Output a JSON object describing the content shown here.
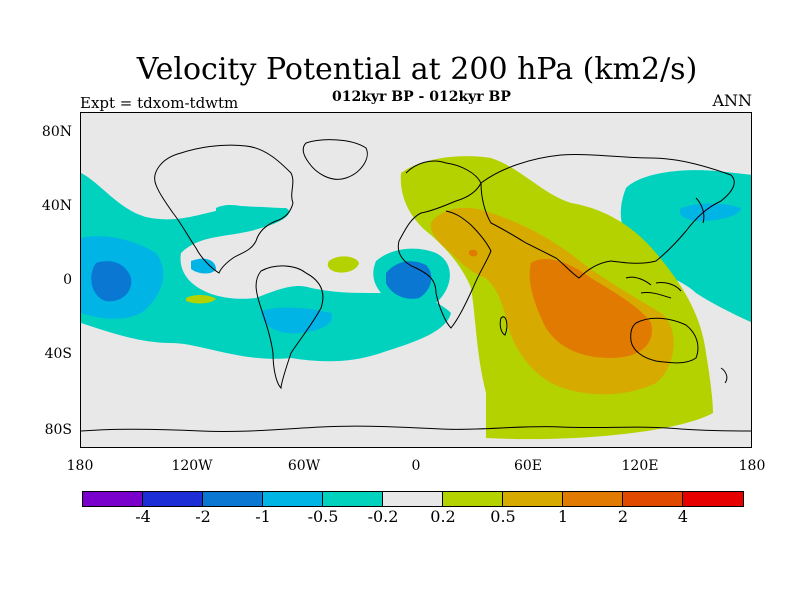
{
  "header": {
    "title": "Velocity Potential at 200 hPa (km2/s)",
    "subtitle": "012kyr BP - 012kyr BP",
    "experiment": "Expt = tdxom-tdwtm",
    "season": "ANN"
  },
  "map": {
    "projection": "cylindrical-equidistant",
    "lat_range": [
      -90,
      90
    ],
    "lon_range": [
      -180,
      180
    ],
    "y_tick_labels": [
      "80N",
      "40N",
      "0",
      "40S",
      "80S"
    ],
    "x_tick_labels": [
      "180",
      "120W",
      "60W",
      "0",
      "60E",
      "120E",
      "180"
    ],
    "field": "velocity potential anomaly",
    "colors": {
      "background": "#e8e8e8",
      "coast": "#000000"
    }
  },
  "colorbar": {
    "colors": [
      "#7a00cc",
      "#1e2ed6",
      "#0a78d2",
      "#00b4e6",
      "#00d2be",
      "#e8e8e8",
      "#b4d200",
      "#d7aa00",
      "#e07a00",
      "#e04a00",
      "#e60000"
    ],
    "labels": [
      "-4",
      "-2",
      "-1",
      "-0.5",
      "-0.2",
      "0.2",
      "0.5",
      "1",
      "2",
      "4"
    ]
  }
}
